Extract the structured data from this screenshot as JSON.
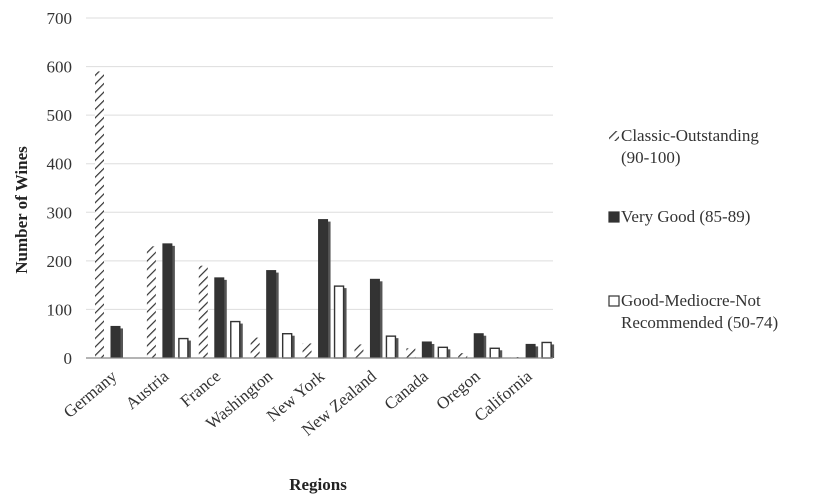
{
  "chart_data": {
    "type": "bar",
    "xlabel": "Regions",
    "ylabel": "Number of Wines",
    "ylim": [
      0,
      700
    ],
    "yticks": [
      0,
      100,
      200,
      300,
      400,
      500,
      600,
      700
    ],
    "grid": true,
    "legend_position": "right",
    "categories": [
      "Germany",
      "Austria",
      "France",
      "Washington",
      "New York",
      "New Zealand",
      "Canada",
      "Oregon",
      "California"
    ],
    "series": [
      {
        "name": "Classic-Outstanding (90-100)",
        "legend_lines": [
          "Classic-Outstanding",
          "(90-100)"
        ],
        "fill": "hatch",
        "values": [
          590,
          230,
          190,
          42,
          30,
          28,
          20,
          10,
          2
        ]
      },
      {
        "name": "Very Good (85-89)",
        "legend_lines": [
          "Very Good (85-89)"
        ],
        "fill": "solid",
        "values": [
          65,
          235,
          165,
          180,
          285,
          162,
          33,
          50,
          28
        ]
      },
      {
        "name": "Good-Mediocre-Not Recommended (50-74)",
        "legend_lines": [
          "Good-Mediocre-Not",
          "Recommended (50-74)"
        ],
        "fill": "open",
        "values": [
          0,
          40,
          75,
          50,
          148,
          45,
          22,
          20,
          32
        ]
      }
    ],
    "colors": {
      "solid": "#333333",
      "hatch": "#333333",
      "open": "#ffffff",
      "stroke": "#333333",
      "grid": "#dddddd"
    }
  }
}
